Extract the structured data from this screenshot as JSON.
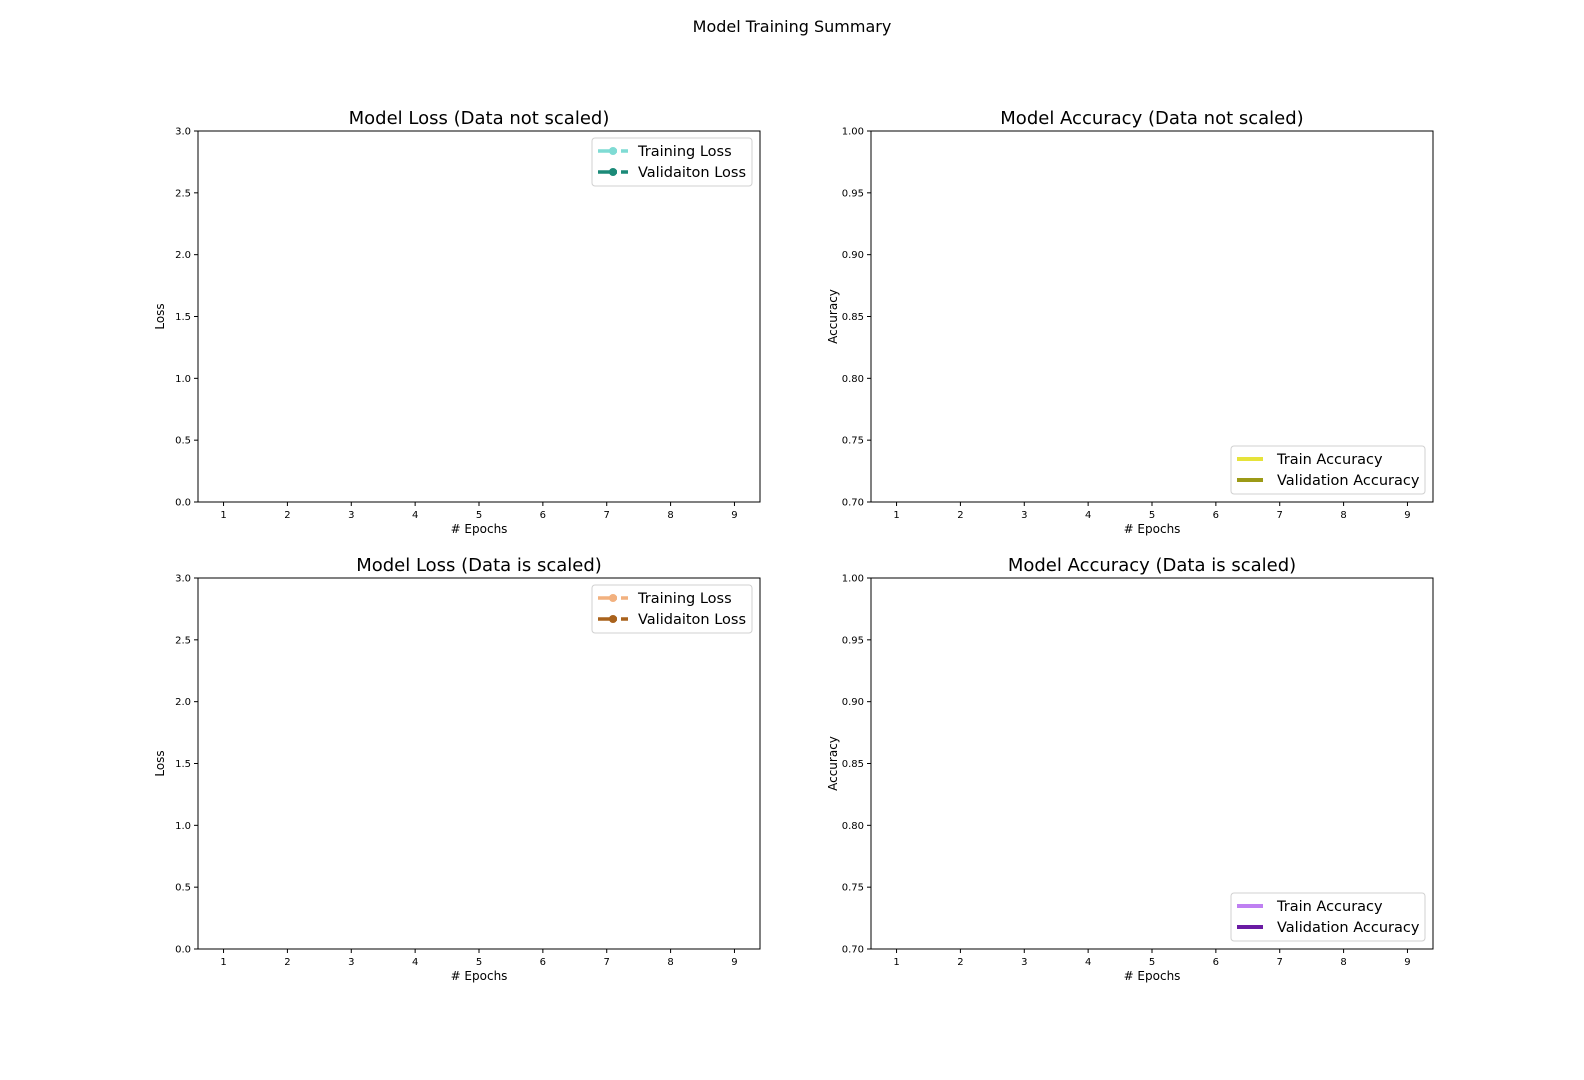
{
  "figure": {
    "title": "Model Training Summary"
  },
  "chart_data": [
    {
      "type": "line",
      "title": "Model Loss (Data not scaled)",
      "xlabel": "# Epochs",
      "ylabel": "Loss",
      "xlim": [
        0.6,
        9.4
      ],
      "ylim": [
        0,
        3
      ],
      "xticks": [
        1,
        2,
        3,
        4,
        5,
        6,
        7,
        8,
        9
      ],
      "yticks": [
        "0.0",
        "0.5",
        "1.0",
        "1.5",
        "2.0",
        "2.5",
        "3.0"
      ],
      "legend_position": "top-right",
      "series": [
        {
          "name": "Training Loss",
          "color": "#7fdbd4",
          "marker": "circle",
          "values": []
        },
        {
          "name": "Validaiton Loss",
          "color": "#1b8a78",
          "marker": "circle",
          "values": []
        }
      ]
    },
    {
      "type": "line",
      "title": "Model Accuracy (Data not scaled)",
      "xlabel": "# Epochs",
      "ylabel": "Accuracy",
      "xlim": [
        0.6,
        9.4
      ],
      "ylim": [
        0.7,
        1.0
      ],
      "xticks": [
        1,
        2,
        3,
        4,
        5,
        6,
        7,
        8,
        9
      ],
      "yticks": [
        "0.70",
        "0.75",
        "0.80",
        "0.85",
        "0.90",
        "0.95",
        "1.00"
      ],
      "legend_position": "bottom-right",
      "series": [
        {
          "name": "Train Accuracy",
          "color": "#e6e33a",
          "marker": "none",
          "values": []
        },
        {
          "name": "Validation Accuracy",
          "color": "#9c9a17",
          "marker": "none",
          "values": []
        }
      ]
    },
    {
      "type": "line",
      "title": "Model Loss (Data is scaled)",
      "xlabel": "# Epochs",
      "ylabel": "Loss",
      "xlim": [
        0.6,
        9.4
      ],
      "ylim": [
        0,
        3
      ],
      "xticks": [
        1,
        2,
        3,
        4,
        5,
        6,
        7,
        8,
        9
      ],
      "yticks": [
        "0.0",
        "0.5",
        "1.0",
        "1.5",
        "2.0",
        "2.5",
        "3.0"
      ],
      "legend_position": "top-right",
      "series": [
        {
          "name": "Training Loss",
          "color": "#f2b17f",
          "marker": "circle",
          "values": []
        },
        {
          "name": "Validaiton Loss",
          "color": "#a9621c",
          "marker": "circle",
          "values": []
        }
      ]
    },
    {
      "type": "line",
      "title": "Model Accuracy (Data is scaled)",
      "xlabel": "# Epochs",
      "ylabel": "Accuracy",
      "xlim": [
        0.6,
        9.4
      ],
      "ylim": [
        0.7,
        1.0
      ],
      "xticks": [
        1,
        2,
        3,
        4,
        5,
        6,
        7,
        8,
        9
      ],
      "yticks": [
        "0.70",
        "0.75",
        "0.80",
        "0.85",
        "0.90",
        "0.95",
        "1.00"
      ],
      "legend_position": "bottom-right",
      "series": [
        {
          "name": "Train Accuracy",
          "color": "#bf80f2",
          "marker": "none",
          "values": []
        },
        {
          "name": "Validation Accuracy",
          "color": "#6a1aa3",
          "marker": "none",
          "values": []
        }
      ]
    }
  ]
}
